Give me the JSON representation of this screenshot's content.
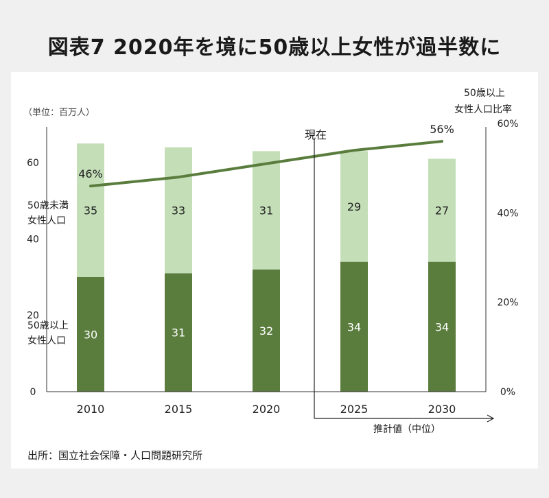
{
  "title": "図表7 2020年を境に50歳以上女性が過半数に",
  "unit_label": "（単位：百万人）",
  "right_axis_title_line1": "50歳以上",
  "right_axis_title_line2": "女性人口比率",
  "now_label": "現在",
  "projection_label": "推計値（中位）",
  "source": "出所：国立社会保障・人口問題研究所",
  "colors": {
    "upper": "#c4dfb8",
    "lower": "#5a7d3e",
    "line": "#5a7d3e"
  },
  "chart_data": {
    "type": "bar",
    "stacked": true,
    "categories": [
      "2010",
      "2015",
      "2020",
      "2025",
      "2030"
    ],
    "series": [
      {
        "name_line1": "50歳以上",
        "name_line2": "女性人口",
        "values": [
          30,
          31,
          32,
          34,
          34
        ]
      },
      {
        "name_line1": "50歳未満",
        "name_line2": "女性人口",
        "values": [
          35,
          33,
          31,
          29,
          27
        ]
      }
    ],
    "line_series": {
      "name": "50歳以上女性人口比率",
      "values": [
        46,
        48,
        51,
        54,
        56
      ],
      "labels": [
        "46%",
        "",
        "",
        "",
        "56%"
      ]
    },
    "y_left": {
      "min": 0,
      "max": 60,
      "ticks": [
        "0",
        "20",
        "40",
        "60"
      ]
    },
    "y_right": {
      "min": 0,
      "max": 60,
      "ticks": [
        "0%",
        "20%",
        "40%",
        "60%"
      ]
    }
  }
}
